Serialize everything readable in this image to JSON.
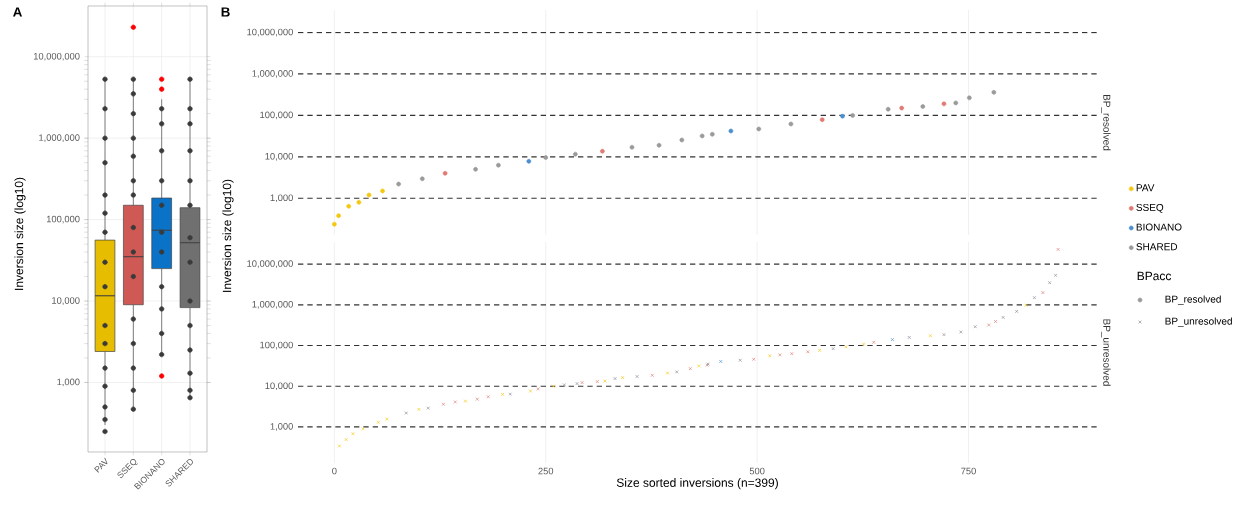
{
  "chart_data": [
    {
      "type": "box",
      "title": "A",
      "ylabel": "Inversion size (log10)",
      "categories": [
        "PAV",
        "SSEQ",
        "BIONANO",
        "SHARED"
      ],
      "log": "y",
      "ylim": [
        140,
        42000000
      ],
      "yticks": [
        {
          "value": 1000,
          "label": "1,000"
        },
        {
          "value": 10000,
          "label": "10,000"
        },
        {
          "value": 100000,
          "label": "100,000"
        },
        {
          "value": 1000000,
          "label": "1,000,000"
        },
        {
          "value": 10000000,
          "label": "10,000,000"
        }
      ],
      "grid": true,
      "marker": "circle",
      "series": [
        {
          "type": "box",
          "colors": [
            "#e6bd00",
            "#cf5a55",
            "#0a72c7",
            "#707070"
          ],
          "boxes": [
            {
              "low": 300,
              "q1": 2400,
              "median": 11600,
              "q3": 56000,
              "high": 5300000
            },
            {
              "low": 470,
              "q1": 9000,
              "median": 35000,
              "q3": 150000,
              "high": 5300000
            },
            {
              "low": 2250,
              "q1": 25000,
              "median": 74000,
              "q3": 184000,
              "high": 3000000
            },
            {
              "low": 660,
              "q1": 8300,
              "median": 52000,
              "q3": 140000,
              "high": 5300000
            }
          ]
        },
        {
          "type": "scatter",
          "color": "#3a3a3a",
          "x": [
            "PAV",
            "PAV",
            "PAV",
            "PAV",
            "PAV",
            "PAV",
            "PAV",
            "PAV",
            "PAV",
            "PAV",
            "PAV",
            "PAV",
            "PAV",
            "PAV",
            "PAV",
            "PAV",
            "SSEQ",
            "SSEQ",
            "SSEQ",
            "SSEQ",
            "SSEQ",
            "SSEQ",
            "SSEQ",
            "SSEQ",
            "SSEQ",
            "SSEQ",
            "SSEQ",
            "SSEQ",
            "SSEQ",
            "SSEQ",
            "SSEQ",
            "SSEQ",
            "BIONANO",
            "BIONANO",
            "BIONANO",
            "BIONANO",
            "BIONANO",
            "BIONANO",
            "BIONANO",
            "BIONANO",
            "BIONANO",
            "BIONANO",
            "BIONANO",
            "BIONANO",
            "BIONANO",
            "SHARED",
            "SHARED",
            "SHARED",
            "SHARED",
            "SHARED",
            "SHARED",
            "SHARED",
            "SHARED",
            "SHARED",
            "SHARED",
            "SHARED",
            "SHARED",
            "SHARED",
            "SHARED"
          ],
          "values": [
            5300000,
            2300000,
            1000000,
            500000,
            200000,
            120000,
            70000,
            30000,
            15000,
            5000,
            3000,
            1500,
            900,
            500,
            350,
            250,
            null,
            5300000,
            3500000,
            2000000,
            1000000,
            600000,
            300000,
            200000,
            80000,
            40000,
            20000,
            6000,
            3000,
            1500,
            800,
            470,
            null,
            2300000,
            1500000,
            700000,
            300000,
            150000,
            70000,
            40000,
            15000,
            8000,
            4000,
            2200,
            null,
            5300000,
            2300000,
            1500000,
            700000,
            300000,
            150000,
            60000,
            30000,
            10000,
            5000,
            2500,
            1300,
            800,
            650
          ]
        },
        {
          "type": "scatter",
          "color": "#ff0000",
          "x": [
            "SSEQ",
            "BIONANO",
            "BIONANO",
            "BIONANO"
          ],
          "values": [
            23000000,
            5300000,
            4000000,
            1200
          ]
        }
      ]
    },
    {
      "type": "scatter",
      "title": "B",
      "subtitle": "BP_resolved",
      "ylabel": "Inversion size (log10)",
      "xlim": [
        -43,
        902
      ],
      "xticks": [
        0,
        250,
        500,
        750
      ],
      "log": "y",
      "ylim": [
        130,
        35000000
      ],
      "yticks": [
        {
          "value": 1000,
          "label": "1,000"
        },
        {
          "value": 10000,
          "label": "10,000"
        },
        {
          "value": 100000,
          "label": "100,000"
        },
        {
          "value": 1000000,
          "label": "1,000,000"
        },
        {
          "value": 10000000,
          "label": "10,000,000"
        }
      ],
      "grid": "x",
      "tick_labels": "y",
      "marker": "circle",
      "legend": "right",
      "ref_lines": [
        {
          "axis": "y",
          "value": 1000,
          "line_style": "dashed",
          "color": "#333333"
        },
        {
          "axis": "y",
          "value": 10000,
          "line_style": "dashed",
          "color": "#333333"
        },
        {
          "axis": "y",
          "value": 100000,
          "line_style": "dashed",
          "color": "#333333"
        },
        {
          "axis": "y",
          "value": 1000000,
          "line_style": "dashed",
          "color": "#333333"
        },
        {
          "axis": "y",
          "value": 10000000,
          "line_style": "dashed",
          "color": "#333333"
        }
      ],
      "series": [
        {
          "name": "PAV",
          "color": "#f5c710",
          "x": [
            0,
            5,
            17,
            29,
            41,
            57
          ],
          "values": [
            237,
            380,
            640,
            800,
            1200,
            1500
          ]
        },
        {
          "name": "SSEQ",
          "color": "#e07a73",
          "x": [
            131,
            317,
            577,
            671,
            721
          ],
          "values": [
            4000,
            13700,
            79000,
            150000,
            190000
          ]
        },
        {
          "name": "BIONANO",
          "color": "#4a90d0",
          "x": [
            230,
            469,
            601
          ],
          "values": [
            7800,
            42000,
            96000
          ]
        },
        {
          "name": "SHARED",
          "color": "#9a9a9a",
          "x": [
            76,
            104,
            167,
            194,
            250,
            285,
            352,
            384,
            411,
            435,
            447,
            502,
            540,
            613,
            655,
            696,
            735,
            751,
            780
          ],
          "values": [
            2200,
            2950,
            5000,
            6300,
            9600,
            11600,
            17000,
            19000,
            25500,
            32000,
            35000,
            47000,
            62000,
            100000,
            141000,
            164000,
            200000,
            265000,
            360000
          ]
        }
      ]
    },
    {
      "type": "scatter",
      "subtitle": "BP_unresolved",
      "xlabel": "Size sorted inversions (n=399)",
      "xlim": [
        -43,
        902
      ],
      "xticks": [
        0,
        250,
        500,
        750
      ],
      "log": "y",
      "ylim": [
        130,
        35000000
      ],
      "yticks": [
        {
          "value": 1000,
          "label": "1,000"
        },
        {
          "value": 10000,
          "label": "10,000"
        },
        {
          "value": 100000,
          "label": "100,000"
        },
        {
          "value": 1000000,
          "label": "1,000,000"
        },
        {
          "value": 10000000,
          "label": "10,000,000"
        }
      ],
      "grid": "x",
      "marker": "cross",
      "legend": "right",
      "legend_title": "BPacc",
      "ref_lines": [
        {
          "axis": "y",
          "value": 1000,
          "line_style": "dashed",
          "color": "#333333"
        },
        {
          "axis": "y",
          "value": 10000,
          "line_style": "dashed",
          "color": "#333333"
        },
        {
          "axis": "y",
          "value": 100000,
          "line_style": "dashed",
          "color": "#333333"
        },
        {
          "axis": "y",
          "value": 1000000,
          "line_style": "dashed",
          "color": "#333333"
        },
        {
          "axis": "y",
          "value": 10000000,
          "line_style": "dashed",
          "color": "#333333"
        }
      ],
      "series": [
        {
          "color": "#f5c710",
          "x": [
            6,
            14,
            22,
            34,
            52,
            62,
            100,
            155,
            199,
            232,
            259,
            320,
            341,
            394,
            431,
            515,
            574,
            605,
            626,
            705,
            818
          ],
          "values": [
            340,
            490,
            680,
            900,
            1300,
            1560,
            2700,
            4300,
            6300,
            7600,
            10000,
            13400,
            16300,
            21000,
            31500,
            56000,
            76000,
            93000,
            108000,
            174000,
            980000
          ]
        },
        {
          "color": "#e07a73",
          "x": [
            129,
            143,
            169,
            182,
            241,
            293,
            311,
            376,
            421,
            441,
            496,
            527,
            541,
            560,
            638,
            774,
            782,
            838,
            856
          ],
          "values": [
            3600,
            4100,
            4800,
            5500,
            8600,
            12300,
            13000,
            18500,
            27000,
            33000,
            46000,
            59000,
            63000,
            70000,
            120000,
            320000,
            390000,
            2000000,
            23000000
          ]
        },
        {
          "color": "#4a90d0",
          "x": [
            457,
            660
          ],
          "values": [
            40500,
            140000
          ]
        },
        {
          "color": "#8a8a9a",
          "x": [
            85,
            111,
            208,
            272,
            287,
            332,
            358,
            405,
            442,
            480,
            590,
            680,
            721,
            741,
            758,
            791,
            807,
            828,
            846,
            853
          ],
          "values": [
            2200,
            2900,
            6400,
            10800,
            11600,
            15400,
            17300,
            22500,
            35000,
            43500,
            84000,
            158000,
            185000,
            215000,
            290000,
            490000,
            690000,
            1500000,
            3500000,
            5300000
          ]
        }
      ]
    }
  ]
}
